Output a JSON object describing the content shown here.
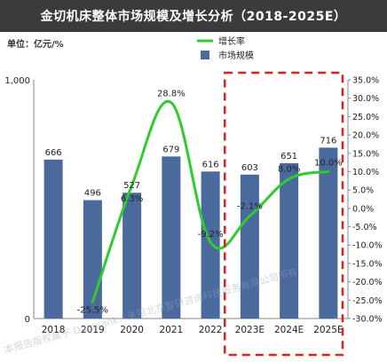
{
  "title": "金切机床整体市场规模及增长分析（2018-2025E）",
  "unit_label": "单位：亿元/%",
  "watermark": "本报告版权属于 Datasank，未限北京智研咨询科技服务有限公司所有",
  "colors": {
    "bar": "#4a6a9e",
    "line": "#2ecc2e",
    "forecast_box": "#e02020",
    "title_bg": "#3b3b3b"
  },
  "chart_data": {
    "type": "bar",
    "title": "金切机床整体市场规模及增长分析（2018-2025E）",
    "categories": [
      "2018",
      "2019",
      "2020",
      "2021",
      "2022",
      "2023E",
      "2024E",
      "2025E"
    ],
    "series": [
      {
        "name": "市场规模",
        "type": "bar",
        "axis": "left",
        "values": [
          666,
          496,
          527,
          679,
          616,
          603,
          651,
          716
        ]
      },
      {
        "name": "增长率",
        "type": "line",
        "axis": "right",
        "smooth": true,
        "values": [
          null,
          -25.5,
          6.3,
          28.8,
          -9.2,
          -2.1,
          8.0,
          10.0
        ],
        "labels": [
          "",
          "-25.5%",
          "6.3%",
          "28.8%",
          "-9.2%",
          "-2.1%",
          "8.0%",
          "10.0%"
        ]
      }
    ],
    "left_axis": {
      "ylim": [
        0,
        1000
      ],
      "tick_labels": [
        "0",
        "1,000"
      ]
    },
    "right_axis": {
      "ylim": [
        -30,
        35
      ],
      "tick_labels": [
        "-30.0%",
        "-25.0%",
        "-20.0%",
        "-15.0%",
        "-10.0%",
        "-5.0%",
        "0.0%",
        "5.0%",
        "10.0%",
        "15.0%",
        "20.0%",
        "25.0%",
        "30.0%",
        "35.0%"
      ]
    },
    "legend": {
      "position": "top-center",
      "entries": [
        "增长率",
        "市场规模"
      ]
    },
    "forecast_categories": [
      "2023E",
      "2024E",
      "2025E"
    ],
    "grid": false
  }
}
